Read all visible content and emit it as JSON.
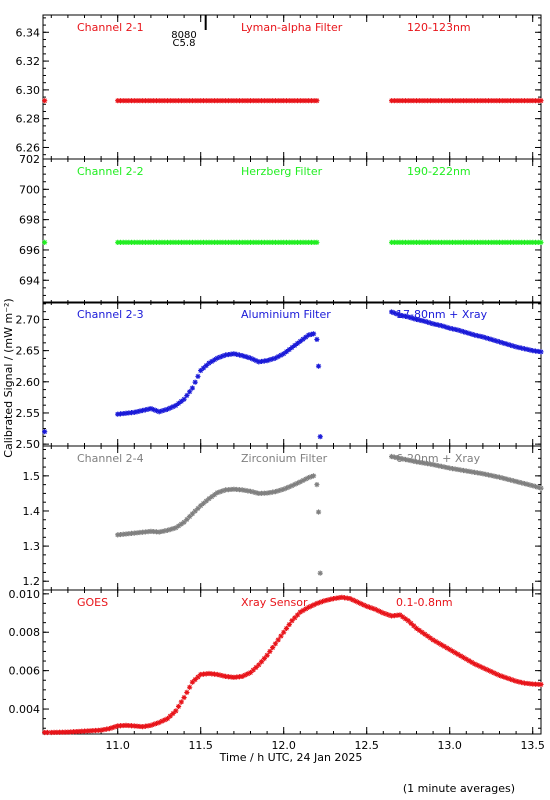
{
  "x_axis": {
    "label": "Time / h UTC, 24 Jan 2025",
    "range": [
      10.55,
      13.55
    ],
    "ticks": [
      "11.0",
      "11.5",
      "12.0",
      "12.5",
      "13.0",
      "13.5"
    ]
  },
  "y_axis_label": "Calibrated Signal / (mW m⁻²)",
  "footnote": "(1 minute averages)",
  "event_marker": {
    "line1": "8080",
    "line2": "C5.8",
    "x": 11.53
  },
  "chart_data": [
    {
      "type": "scatter",
      "channel": "Channel 2-1",
      "filter": "Lyman-alpha Filter",
      "band": "120-123nm",
      "color": "#e8141a",
      "ylim": [
        6.252,
        6.352
      ],
      "yticks": [
        "6.26",
        "6.28",
        "6.30",
        "6.32",
        "6.34"
      ],
      "points": [
        [
          10.56,
          6.2925
        ],
        [
          11.0,
          6.2925
        ],
        [
          11.2,
          6.2925
        ],
        [
          11.4,
          6.2925
        ],
        [
          11.6,
          6.2925
        ],
        [
          11.8,
          6.2925
        ],
        [
          12.0,
          6.2925
        ],
        [
          12.2,
          6.2925
        ],
        [
          12.65,
          6.2925
        ],
        [
          12.9,
          6.2925
        ],
        [
          13.1,
          6.2925
        ],
        [
          13.3,
          6.2925
        ],
        [
          13.55,
          6.2925
        ]
      ]
    },
    {
      "type": "scatter",
      "channel": "Channel 2-2",
      "filter": "Herzberg Filter",
      "band": "190-222nm",
      "color": "#22ee22",
      "ylim": [
        692.5,
        702.0
      ],
      "yticks": [
        "694",
        "696",
        "698",
        "700",
        "702"
      ],
      "points": [
        [
          10.56,
          696.5
        ],
        [
          11.0,
          696.5
        ],
        [
          11.2,
          696.5
        ],
        [
          11.4,
          696.5
        ],
        [
          11.6,
          696.5
        ],
        [
          11.8,
          696.5
        ],
        [
          12.0,
          696.5
        ],
        [
          12.2,
          696.5
        ],
        [
          12.65,
          696.5
        ],
        [
          12.9,
          696.5
        ],
        [
          13.1,
          696.5
        ],
        [
          13.3,
          696.5
        ],
        [
          13.55,
          696.5
        ]
      ]
    },
    {
      "type": "scatter",
      "channel": "Channel 2-3",
      "filter": "Aluminium Filter",
      "band": "17-80nm + Xray",
      "color": "#1a1ad8",
      "ylim": [
        2.497,
        2.728
      ],
      "yticks": [
        "2.50",
        "2.55",
        "2.60",
        "2.65",
        "2.70"
      ],
      "points": [
        [
          10.56,
          2.52
        ],
        [
          11.0,
          2.548
        ],
        [
          11.1,
          2.551
        ],
        [
          11.2,
          2.557
        ],
        [
          11.25,
          2.552
        ],
        [
          11.3,
          2.556
        ],
        [
          11.35,
          2.562
        ],
        [
          11.4,
          2.572
        ],
        [
          11.45,
          2.59
        ],
        [
          11.5,
          2.618
        ],
        [
          11.55,
          2.63
        ],
        [
          11.6,
          2.638
        ],
        [
          11.65,
          2.643
        ],
        [
          11.7,
          2.645
        ],
        [
          11.75,
          2.642
        ],
        [
          11.8,
          2.638
        ],
        [
          11.85,
          2.632
        ],
        [
          11.9,
          2.634
        ],
        [
          11.95,
          2.638
        ],
        [
          12.0,
          2.645
        ],
        [
          12.05,
          2.655
        ],
        [
          12.1,
          2.665
        ],
        [
          12.15,
          2.675
        ],
        [
          12.18,
          2.677
        ],
        [
          12.2,
          2.668
        ],
        [
          12.21,
          2.625
        ],
        [
          12.22,
          2.512
        ],
        [
          12.65,
          2.712
        ],
        [
          12.7,
          2.707
        ],
        [
          12.75,
          2.704
        ],
        [
          12.8,
          2.7
        ],
        [
          12.85,
          2.697
        ],
        [
          12.9,
          2.693
        ],
        [
          12.95,
          2.69
        ],
        [
          13.0,
          2.686
        ],
        [
          13.05,
          2.683
        ],
        [
          13.1,
          2.679
        ],
        [
          13.15,
          2.675
        ],
        [
          13.2,
          2.672
        ],
        [
          13.25,
          2.668
        ],
        [
          13.3,
          2.664
        ],
        [
          13.35,
          2.66
        ],
        [
          13.4,
          2.656
        ],
        [
          13.45,
          2.653
        ],
        [
          13.5,
          2.65
        ],
        [
          13.55,
          2.648
        ]
      ]
    },
    {
      "type": "scatter",
      "channel": "Channel 2-4",
      "filter": "Zirconium Filter",
      "band": "6-20nm + Xray",
      "color": "#808080",
      "ylim": [
        1.175,
        1.585
      ],
      "yticks": [
        "1.2",
        "1.3",
        "1.4",
        "1.5"
      ],
      "points": [
        [
          11.0,
          1.332
        ],
        [
          11.1,
          1.337
        ],
        [
          11.2,
          1.342
        ],
        [
          11.25,
          1.34
        ],
        [
          11.3,
          1.345
        ],
        [
          11.35,
          1.352
        ],
        [
          11.4,
          1.368
        ],
        [
          11.45,
          1.392
        ],
        [
          11.5,
          1.415
        ],
        [
          11.55,
          1.435
        ],
        [
          11.6,
          1.452
        ],
        [
          11.65,
          1.46
        ],
        [
          11.7,
          1.462
        ],
        [
          11.75,
          1.46
        ],
        [
          11.8,
          1.456
        ],
        [
          11.85,
          1.45
        ],
        [
          11.9,
          1.451
        ],
        [
          11.95,
          1.455
        ],
        [
          12.0,
          1.462
        ],
        [
          12.05,
          1.472
        ],
        [
          12.1,
          1.483
        ],
        [
          12.15,
          1.495
        ],
        [
          12.18,
          1.5
        ],
        [
          12.2,
          1.475
        ],
        [
          12.21,
          1.397
        ],
        [
          12.22,
          1.223
        ],
        [
          12.65,
          1.555
        ],
        [
          12.7,
          1.55
        ],
        [
          12.75,
          1.545
        ],
        [
          12.8,
          1.54
        ],
        [
          12.85,
          1.536
        ],
        [
          12.9,
          1.532
        ],
        [
          12.95,
          1.527
        ],
        [
          13.0,
          1.522
        ],
        [
          13.05,
          1.518
        ],
        [
          13.1,
          1.514
        ],
        [
          13.15,
          1.51
        ],
        [
          13.2,
          1.506
        ],
        [
          13.25,
          1.501
        ],
        [
          13.3,
          1.496
        ],
        [
          13.35,
          1.49
        ],
        [
          13.4,
          1.484
        ],
        [
          13.45,
          1.478
        ],
        [
          13.5,
          1.472
        ],
        [
          13.55,
          1.465
        ]
      ]
    },
    {
      "type": "scatter",
      "channel": "GOES",
      "filter": "Xray Sensor",
      "band": "0.1-0.8nm",
      "color": "#e8141a",
      "ylim": [
        0.0027,
        0.0102
      ],
      "yticks": [
        "0.004",
        "0.006",
        "0.008",
        "0.010"
      ],
      "points": [
        [
          10.56,
          0.00278
        ],
        [
          10.6,
          0.00278
        ],
        [
          10.7,
          0.0028
        ],
        [
          10.8,
          0.00285
        ],
        [
          10.9,
          0.0029
        ],
        [
          10.95,
          0.00298
        ],
        [
          11.0,
          0.00312
        ],
        [
          11.05,
          0.00315
        ],
        [
          11.1,
          0.00312
        ],
        [
          11.15,
          0.00308
        ],
        [
          11.2,
          0.00315
        ],
        [
          11.25,
          0.0033
        ],
        [
          11.3,
          0.0035
        ],
        [
          11.35,
          0.0039
        ],
        [
          11.4,
          0.0046
        ],
        [
          11.45,
          0.0054
        ],
        [
          11.5,
          0.0058
        ],
        [
          11.55,
          0.00585
        ],
        [
          11.6,
          0.0058
        ],
        [
          11.65,
          0.0057
        ],
        [
          11.7,
          0.00565
        ],
        [
          11.75,
          0.0057
        ],
        [
          11.8,
          0.0059
        ],
        [
          11.85,
          0.0063
        ],
        [
          11.9,
          0.0068
        ],
        [
          11.95,
          0.0074
        ],
        [
          12.0,
          0.008
        ],
        [
          12.05,
          0.0086
        ],
        [
          12.1,
          0.00905
        ],
        [
          12.15,
          0.0093
        ],
        [
          12.2,
          0.0095
        ],
        [
          12.25,
          0.00965
        ],
        [
          12.3,
          0.00975
        ],
        [
          12.35,
          0.00982
        ],
        [
          12.4,
          0.00975
        ],
        [
          12.45,
          0.00955
        ],
        [
          12.5,
          0.00935
        ],
        [
          12.55,
          0.0092
        ],
        [
          12.6,
          0.009
        ],
        [
          12.65,
          0.00885
        ],
        [
          12.7,
          0.0089
        ],
        [
          12.75,
          0.0086
        ],
        [
          12.8,
          0.0082
        ],
        [
          12.85,
          0.0079
        ],
        [
          12.9,
          0.0076
        ],
        [
          12.95,
          0.00735
        ],
        [
          13.0,
          0.0071
        ],
        [
          13.05,
          0.00685
        ],
        [
          13.1,
          0.0066
        ],
        [
          13.15,
          0.00635
        ],
        [
          13.2,
          0.00615
        ],
        [
          13.25,
          0.00595
        ],
        [
          13.3,
          0.00575
        ],
        [
          13.35,
          0.0056
        ],
        [
          13.4,
          0.00545
        ],
        [
          13.45,
          0.00535
        ],
        [
          13.5,
          0.0053
        ],
        [
          13.55,
          0.00528
        ]
      ]
    }
  ]
}
